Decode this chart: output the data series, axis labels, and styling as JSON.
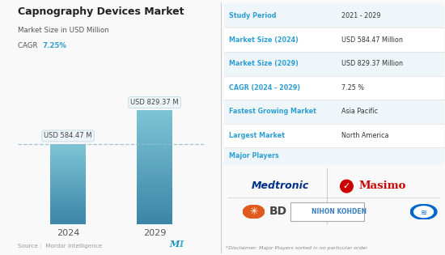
{
  "title": "Capnography Devices Market",
  "subtitle": "Market Size in USD Million",
  "cagr_label": "CAGR",
  "cagr_value": "7.25%",
  "cagr_color": "#2e9fd4",
  "bar_years": [
    "2024",
    "2029"
  ],
  "bar_values": [
    584.47,
    829.37
  ],
  "bar_labels": [
    "USD 584.47 M",
    "USD 829.37 M"
  ],
  "bar_color_top": "#7fc4d4",
  "bar_color_bottom": "#3a85a8",
  "dashed_line_color": "#90bfcc",
  "source_text": "Source :  Mordor Intelligence",
  "table_rows": [
    {
      "label": "Study Period",
      "value": "2021 - 2029"
    },
    {
      "label": "Market Size (2024)",
      "value": "USD 584.47 Million"
    },
    {
      "label": "Market Size (2029)",
      "value": "USD 829.37 Million"
    },
    {
      "label": "CAGR (2024 - 2029)",
      "value": "7.25 %"
    },
    {
      "label": "Fastest Growing Market",
      "value": "Asia Pacific"
    },
    {
      "label": "Largest Market",
      "value": "North America"
    },
    {
      "label": "Major Players",
      "value": ""
    }
  ],
  "label_color": "#2e9fd4",
  "value_color": "#333333",
  "background_color": "#f9f9f9",
  "divider_color": "#e0e0e0",
  "row_bg_even": "#eef6fa",
  "row_bg_odd": "#ffffff",
  "disclaimer": "*Disclaimer: Major Players sorted in no particular order",
  "medtronic_color": "#003087",
  "masimo_color": "#cc0000",
  "bd_color": "#e05a1e",
  "nihon_bg": "#3a7fc1",
  "philips_color": "#0066cc"
}
